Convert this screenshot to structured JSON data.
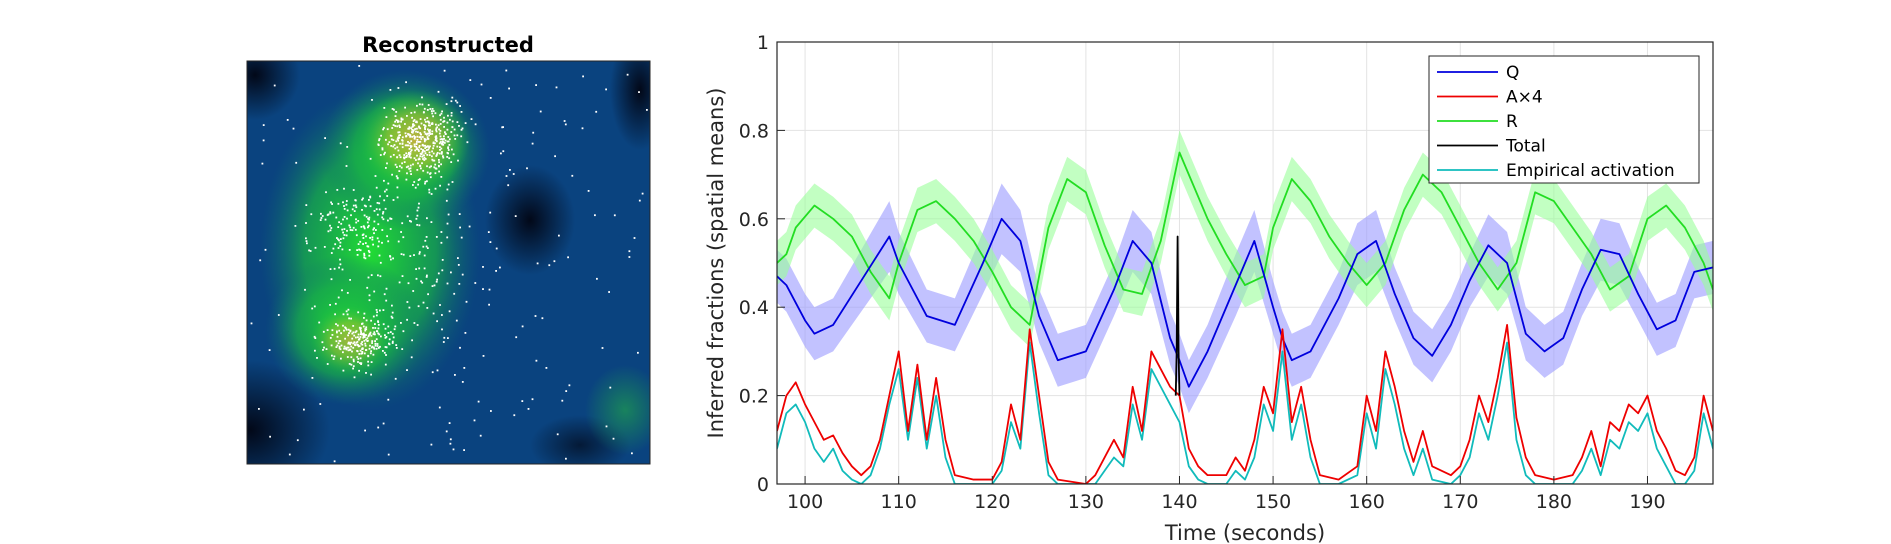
{
  "left_panel": {
    "title": "Reconstructed"
  },
  "chart_data": {
    "type": "line",
    "xlabel": "Time (seconds)",
    "ylabel": "Inferred fractions (spatial means)",
    "xlim": [
      97,
      197
    ],
    "ylim": [
      0,
      1
    ],
    "xticks": [
      100,
      110,
      120,
      130,
      140,
      150,
      160,
      170,
      180,
      190
    ],
    "yticks": [
      0,
      0.2,
      0.4,
      0.6,
      0.8,
      1
    ],
    "grid": true,
    "legend_position": "top-right",
    "series": [
      {
        "name": "Q",
        "color": "#0000dd",
        "band_color": "#9999ff",
        "x": [
          97,
          98,
          100,
          101,
          103,
          106,
          109,
          110,
          113,
          116,
          119,
          121,
          123,
          125,
          127,
          130,
          133,
          135,
          137,
          139,
          140,
          141,
          143,
          146,
          148,
          150,
          151,
          152,
          154,
          157,
          159,
          161,
          163,
          165,
          167,
          169,
          171,
          173,
          175,
          177,
          179,
          181,
          183,
          185,
          187,
          189,
          191,
          193,
          195,
          197
        ],
        "y": [
          0.47,
          0.45,
          0.37,
          0.34,
          0.36,
          0.46,
          0.56,
          0.5,
          0.38,
          0.36,
          0.5,
          0.6,
          0.55,
          0.38,
          0.28,
          0.3,
          0.44,
          0.55,
          0.5,
          0.33,
          0.28,
          0.22,
          0.3,
          0.45,
          0.55,
          0.4,
          0.33,
          0.28,
          0.3,
          0.42,
          0.52,
          0.55,
          0.43,
          0.33,
          0.29,
          0.36,
          0.46,
          0.54,
          0.5,
          0.34,
          0.3,
          0.33,
          0.44,
          0.53,
          0.52,
          0.43,
          0.35,
          0.37,
          0.48,
          0.49
        ],
        "band": [
          0.06,
          0.06,
          0.06,
          0.06,
          0.06,
          0.07,
          0.08,
          0.07,
          0.06,
          0.06,
          0.07,
          0.08,
          0.07,
          0.06,
          0.06,
          0.06,
          0.06,
          0.07,
          0.07,
          0.06,
          0.06,
          0.06,
          0.06,
          0.07,
          0.07,
          0.06,
          0.06,
          0.06,
          0.06,
          0.06,
          0.07,
          0.07,
          0.06,
          0.06,
          0.06,
          0.06,
          0.06,
          0.07,
          0.07,
          0.06,
          0.06,
          0.06,
          0.06,
          0.07,
          0.07,
          0.06,
          0.06,
          0.06,
          0.06,
          0.06
        ]
      },
      {
        "name": "A×4",
        "color": "#ee0000",
        "x": [
          97,
          98,
          99,
          100,
          101,
          102,
          103,
          104,
          105,
          106,
          107,
          108,
          109,
          110,
          111,
          112,
          113,
          114,
          115,
          116,
          118,
          120,
          121,
          122,
          123,
          124,
          125,
          126,
          127,
          130,
          131,
          133,
          134,
          135,
          136,
          137,
          138,
          139,
          140,
          141,
          142,
          143,
          145,
          146,
          147,
          148,
          149,
          150,
          151,
          152,
          153,
          154,
          155,
          157,
          159,
          160,
          161,
          162,
          163,
          164,
          165,
          166,
          167,
          169,
          170,
          171,
          172,
          173,
          174,
          175,
          176,
          177,
          178,
          180,
          182,
          183,
          184,
          185,
          186,
          187,
          188,
          189,
          190,
          191,
          192,
          193,
          194,
          195,
          196,
          197
        ],
        "y": [
          0.12,
          0.2,
          0.23,
          0.18,
          0.14,
          0.1,
          0.11,
          0.07,
          0.04,
          0.02,
          0.04,
          0.1,
          0.2,
          0.3,
          0.12,
          0.27,
          0.1,
          0.24,
          0.1,
          0.02,
          0.01,
          0.01,
          0.05,
          0.18,
          0.1,
          0.35,
          0.2,
          0.05,
          0.01,
          0.0,
          0.02,
          0.1,
          0.06,
          0.22,
          0.12,
          0.3,
          0.26,
          0.22,
          0.2,
          0.08,
          0.04,
          0.02,
          0.02,
          0.06,
          0.03,
          0.1,
          0.22,
          0.16,
          0.35,
          0.14,
          0.22,
          0.1,
          0.02,
          0.01,
          0.04,
          0.2,
          0.12,
          0.3,
          0.22,
          0.12,
          0.05,
          0.12,
          0.04,
          0.02,
          0.04,
          0.1,
          0.2,
          0.14,
          0.24,
          0.36,
          0.15,
          0.06,
          0.02,
          0.01,
          0.02,
          0.06,
          0.12,
          0.04,
          0.14,
          0.12,
          0.18,
          0.16,
          0.2,
          0.12,
          0.08,
          0.03,
          0.02,
          0.06,
          0.2,
          0.12
        ]
      },
      {
        "name": "R",
        "color": "#22dd22",
        "band_color": "#99ff99",
        "x": [
          97,
          98,
          99,
          101,
          103,
          105,
          107,
          109,
          110,
          112,
          114,
          116,
          118,
          120,
          122,
          124,
          126,
          128,
          130,
          132,
          134,
          136,
          138,
          139,
          140,
          141,
          143,
          145,
          147,
          149,
          150,
          152,
          154,
          156,
          158,
          160,
          162,
          164,
          166,
          168,
          170,
          172,
          174,
          176,
          178,
          180,
          182,
          184,
          186,
          188,
          190,
          192,
          194,
          196,
          197
        ],
        "y": [
          0.5,
          0.52,
          0.58,
          0.63,
          0.6,
          0.56,
          0.48,
          0.42,
          0.5,
          0.62,
          0.64,
          0.6,
          0.55,
          0.48,
          0.4,
          0.36,
          0.58,
          0.69,
          0.66,
          0.54,
          0.44,
          0.43,
          0.55,
          0.65,
          0.75,
          0.7,
          0.6,
          0.52,
          0.45,
          0.47,
          0.58,
          0.69,
          0.64,
          0.56,
          0.5,
          0.45,
          0.5,
          0.62,
          0.7,
          0.66,
          0.58,
          0.5,
          0.44,
          0.5,
          0.66,
          0.64,
          0.58,
          0.52,
          0.44,
          0.47,
          0.6,
          0.63,
          0.58,
          0.5,
          0.44
        ],
        "band": [
          0.05,
          0.05,
          0.05,
          0.05,
          0.05,
          0.05,
          0.05,
          0.05,
          0.05,
          0.05,
          0.05,
          0.05,
          0.05,
          0.05,
          0.05,
          0.05,
          0.05,
          0.05,
          0.05,
          0.05,
          0.05,
          0.05,
          0.05,
          0.05,
          0.05,
          0.05,
          0.05,
          0.05,
          0.05,
          0.05,
          0.05,
          0.05,
          0.05,
          0.05,
          0.05,
          0.05,
          0.05,
          0.05,
          0.05,
          0.05,
          0.05,
          0.05,
          0.05,
          0.05,
          0.05,
          0.05,
          0.05,
          0.05,
          0.05,
          0.05,
          0.05,
          0.05,
          0.05,
          0.05,
          0.05
        ]
      },
      {
        "name": "Total",
        "color": "#000000",
        "x": [
          139.6,
          139.7,
          139.8,
          139.9,
          140.0
        ],
        "y": [
          0.2,
          0.3,
          0.56,
          0.3,
          0.2
        ]
      },
      {
        "name": "Empirical activation",
        "color": "#11bbbb",
        "x": [
          97,
          98,
          99,
          100,
          101,
          102,
          103,
          104,
          105,
          106,
          107,
          108,
          109,
          110,
          111,
          112,
          113,
          114,
          115,
          116,
          118,
          120,
          121,
          122,
          123,
          124,
          125,
          126,
          127,
          130,
          131,
          133,
          134,
          135,
          136,
          137,
          138,
          139,
          140,
          141,
          142,
          143,
          145,
          146,
          147,
          148,
          149,
          150,
          151,
          152,
          153,
          154,
          155,
          157,
          159,
          160,
          161,
          162,
          163,
          164,
          165,
          166,
          167,
          169,
          170,
          171,
          172,
          173,
          174,
          175,
          176,
          177,
          178,
          180,
          182,
          183,
          184,
          185,
          186,
          187,
          188,
          189,
          190,
          191,
          192,
          193,
          194,
          195,
          196,
          197
        ],
        "y": [
          0.08,
          0.16,
          0.18,
          0.14,
          0.08,
          0.05,
          0.08,
          0.03,
          0.01,
          0.0,
          0.02,
          0.08,
          0.18,
          0.26,
          0.1,
          0.24,
          0.08,
          0.2,
          0.06,
          0.0,
          0.0,
          0.0,
          0.03,
          0.14,
          0.08,
          0.32,
          0.16,
          0.02,
          0.0,
          0.0,
          0.0,
          0.06,
          0.04,
          0.18,
          0.1,
          0.26,
          0.22,
          0.18,
          0.14,
          0.04,
          0.01,
          0.0,
          0.0,
          0.03,
          0.01,
          0.06,
          0.18,
          0.12,
          0.3,
          0.1,
          0.18,
          0.06,
          0.0,
          0.0,
          0.02,
          0.16,
          0.08,
          0.26,
          0.18,
          0.08,
          0.02,
          0.08,
          0.01,
          0.0,
          0.02,
          0.06,
          0.16,
          0.1,
          0.2,
          0.32,
          0.1,
          0.02,
          0.0,
          0.0,
          0.0,
          0.03,
          0.08,
          0.02,
          0.1,
          0.08,
          0.14,
          0.12,
          0.16,
          0.08,
          0.04,
          0.0,
          0.0,
          0.03,
          0.16,
          0.08
        ]
      }
    ]
  }
}
